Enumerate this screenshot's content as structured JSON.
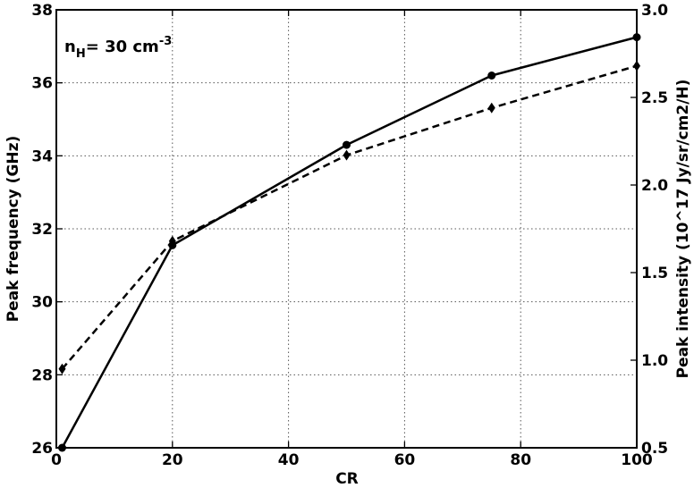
{
  "chart_data": {
    "type": "line",
    "xlabel": "CR",
    "ylabel_left": "Peak frequency (GHz)",
    "ylabel_right": "Peak intensity (10^17 Jy/sr/cm2/H)",
    "annotation": {
      "main": "n",
      "sub": "H",
      "rest": "= 30 cm",
      "sup": "-3"
    },
    "xlim": [
      0,
      100
    ],
    "ylim_left": [
      26,
      38
    ],
    "ylim_right": [
      0.5,
      3.0
    ],
    "x_ticks": [
      0,
      20,
      40,
      60,
      80,
      100
    ],
    "y_ticks_left": [
      26,
      28,
      30,
      32,
      34,
      36,
      38
    ],
    "y_ticks_right": [
      "0.5",
      "1.0",
      "1.5",
      "2.0",
      "2.5",
      "3.0"
    ],
    "grid": true,
    "series": [
      {
        "axis": "left",
        "style": "solid",
        "marker": "circle",
        "color": "#000000",
        "x": [
          1,
          20,
          50,
          75,
          100
        ],
        "values": [
          26.0,
          31.55,
          34.3,
          36.2,
          37.25
        ]
      },
      {
        "axis": "right",
        "style": "dashed",
        "marker": "diamond",
        "color": "#000000",
        "x": [
          1,
          20,
          50,
          75,
          100
        ],
        "values": [
          0.95,
          1.68,
          2.17,
          2.44,
          2.68
        ]
      }
    ]
  }
}
